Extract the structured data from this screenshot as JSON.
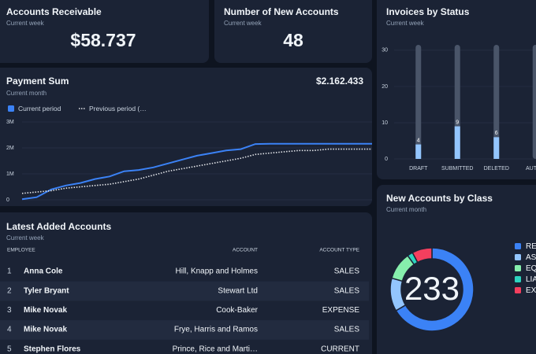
{
  "kpis": [
    {
      "title": "Accounts Receivable",
      "subtitle": "Current week",
      "value": "$58.737"
    },
    {
      "title": "Number of New Accounts",
      "subtitle": "Current week",
      "value": 48
    }
  ],
  "chart_data": [
    {
      "type": "line",
      "title": "Payment Sum",
      "subtitle": "Current month",
      "headline": "$2.162.433",
      "categories": [
        null,
        null,
        null,
        null,
        null,
        null,
        null,
        null,
        null,
        null,
        null,
        null,
        null,
        null,
        null,
        null,
        null,
        null,
        null,
        null,
        null,
        null,
        null,
        null,
        null
      ],
      "series": [
        {
          "name": "Current period",
          "color": "#3b82f6",
          "dashed": false,
          "values": [
            20000,
            100000,
            400000,
            550000,
            650000,
            800000,
            900000,
            1100000,
            1150000,
            1250000,
            1400000,
            1550000,
            1700000,
            1800000,
            1900000,
            1950000,
            2150000,
            2160000,
            2160000,
            2160000,
            2160000,
            2160000,
            2160000,
            2160000,
            2160000
          ]
        },
        {
          "name": "Previous period (…",
          "color": "#e5e7eb",
          "dashed": true,
          "values": [
            250000,
            300000,
            350000,
            450000,
            500000,
            550000,
            600000,
            700000,
            800000,
            950000,
            1100000,
            1200000,
            1300000,
            1400000,
            1500000,
            1600000,
            1750000,
            1800000,
            1850000,
            1900000,
            1900000,
            1950000,
            1950000,
            1950000,
            1950000
          ]
        }
      ],
      "ylim": [
        0,
        3000000
      ],
      "yticks": [
        0,
        {
          "value": 1000000,
          "label": "1M"
        },
        {
          "value": 2000000,
          "label": "2M"
        },
        {
          "value": 3000000,
          "label": "3M"
        }
      ],
      "grid": true
    },
    {
      "type": "bar",
      "title": "Invoices by Status",
      "subtitle": "Current week",
      "categories": [
        "DRAFT",
        "SUBMITTED",
        "DELETED",
        "AUTHO"
      ],
      "values": [
        4,
        9,
        6,
        null
      ],
      "color": "#93c5fd",
      "track_color": "#4a5569",
      "ylim": [
        0,
        31.5
      ],
      "yticks": [
        0,
        10,
        20,
        30
      ],
      "grid": true
    },
    {
      "type": "pie",
      "title": "New Accounts by Class",
      "subtitle": "Current month",
      "total": 233,
      "categories": [
        "RE",
        "AS",
        "EQ",
        "LIA",
        "EX"
      ],
      "values": [
        155,
        30,
        25,
        5,
        18
      ],
      "colors": [
        "#3b82f6",
        "#93c5fd",
        "#86efac",
        "#2dd4bf",
        "#f43f5e"
      ]
    }
  ],
  "table": {
    "title": "Latest Added Accounts",
    "subtitle": "Current week",
    "columns": [
      "EMPLOYEE",
      "ACCOUNT",
      "ACCOUNT TYPE"
    ],
    "rows": [
      [
        1,
        "Anna Cole",
        "Hill, Knapp and Holmes",
        "SALES"
      ],
      [
        2,
        "Tyler Bryant",
        "Stewart Ltd",
        "SALES"
      ],
      [
        3,
        "Mike Novak",
        "Cook-Baker",
        "EXPENSE"
      ],
      [
        4,
        "Mike Novak",
        "Frye, Harris and Ramos",
        "SALES"
      ],
      [
        5,
        "Stephen Flores",
        "Prince, Rice and Marti…",
        "CURRENT"
      ]
    ]
  }
}
